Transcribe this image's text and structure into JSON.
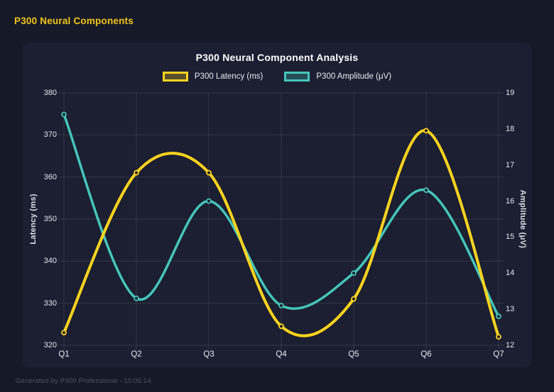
{
  "header": {
    "title": "P300 Neural Components"
  },
  "footer": {
    "text": "Generated by P300 Professional - 10:05:14"
  },
  "colors": {
    "page_background": "#161a28",
    "card_background": "#1b1f31",
    "latency_line": "#FFD41E",
    "amplitude_line": "#45C5BC",
    "grid_line": "#ffffff",
    "title_text": "#ffffff",
    "header_text": "#f2c51a"
  },
  "chart_data": {
    "type": "line",
    "title": "P300 Neural Component Analysis",
    "categories": [
      "Q1",
      "Q2",
      "Q3",
      "Q4",
      "Q5",
      "Q6",
      "Q7"
    ],
    "series": [
      {
        "name": "P300 Latency (ms)",
        "color": "#FFD41E",
        "axis": "left",
        "values": [
          323,
          361,
          361,
          324.5,
          331,
          371,
          322
        ]
      },
      {
        "name": "P300 Amplitude (μV)",
        "color": "#45C5BC",
        "axis": "right",
        "values": [
          18.4,
          13.3,
          16.0,
          13.1,
          14.0,
          16.3,
          12.8
        ]
      }
    ],
    "left_axis": {
      "label": "Latency (ms)",
      "min": 320,
      "max": 380,
      "ticks": [
        320,
        330,
        340,
        350,
        360,
        370,
        380
      ]
    },
    "right_axis": {
      "label": "Amplitude (μV)",
      "min": 12,
      "max": 19,
      "ticks": [
        12,
        13,
        14,
        15,
        16,
        17,
        18,
        19
      ]
    },
    "grid": true,
    "legend_position": "top",
    "curve": "smooth-spline-with-overshoot"
  }
}
